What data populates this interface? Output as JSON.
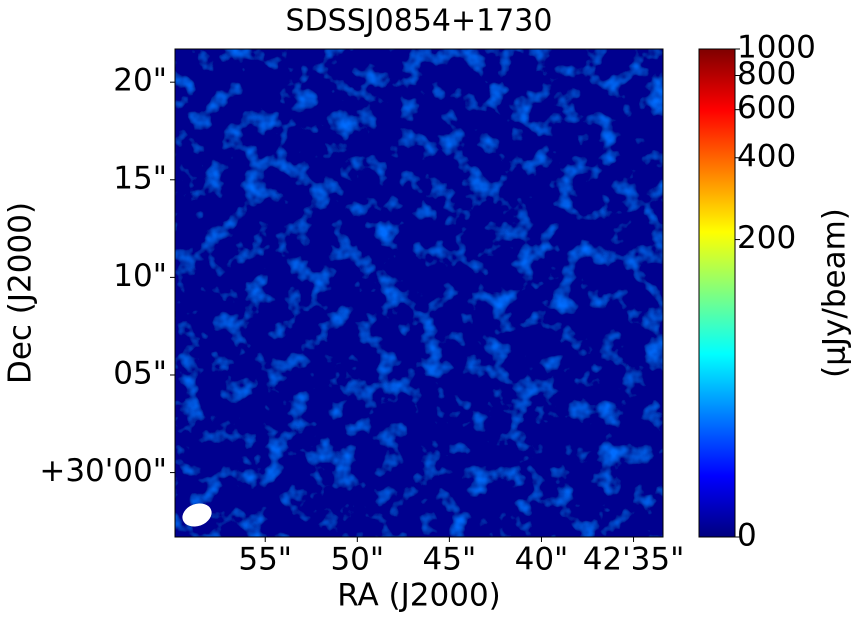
{
  "chart_data": {
    "type": "image",
    "title": "SDSSJ0854+1730",
    "xlabel": "RA (J2000)",
    "ylabel": "Dec (J2000)",
    "colorbar_label": "(μJy/beam)",
    "colorbar_scale": "asinh",
    "colormap": "jet",
    "xlim": [
      59.9,
      33.4
    ],
    "xticks": [
      {
        "value": 55,
        "label": "55\""
      },
      {
        "value": 50,
        "label": "50\""
      },
      {
        "value": 45,
        "label": "45\""
      },
      {
        "value": 40,
        "label": "40\""
      },
      {
        "value": 35,
        "label": "42'35\""
      }
    ],
    "ylim": [
      -3.3,
      21.7
    ],
    "yticks": [
      {
        "value": 0,
        "label": "+30'00\""
      },
      {
        "value": 5,
        "label": "05\""
      },
      {
        "value": 10,
        "label": "10\""
      },
      {
        "value": 15,
        "label": "15\""
      },
      {
        "value": 20,
        "label": "20\""
      }
    ],
    "clim": [
      0,
      1000
    ],
    "cticks": [
      0,
      200,
      400,
      600,
      800,
      1000
    ]
  }
}
